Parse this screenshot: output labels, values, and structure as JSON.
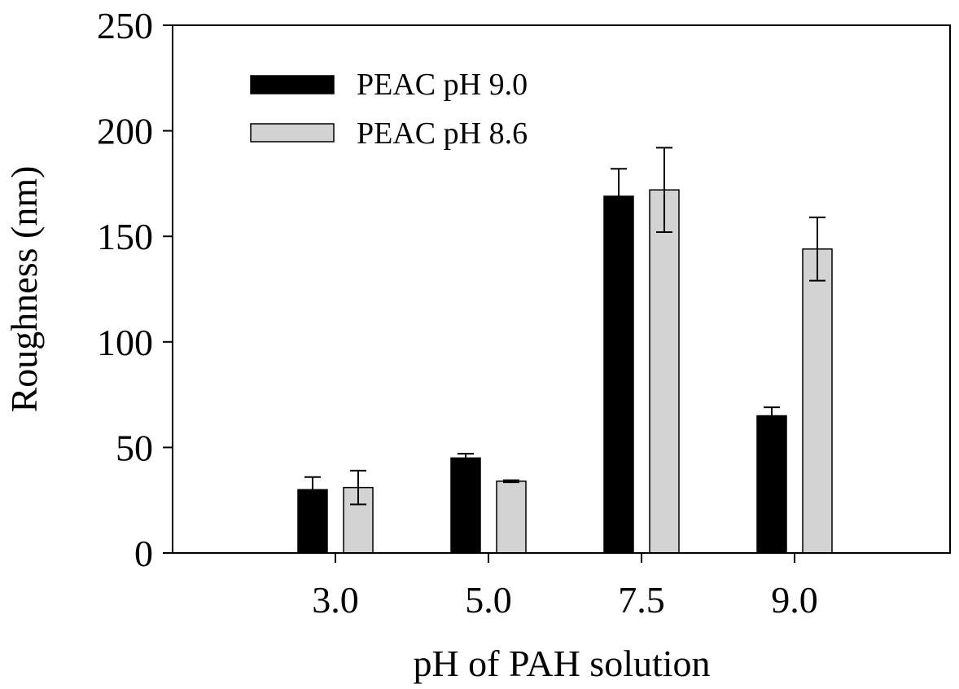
{
  "chart_data": {
    "type": "bar",
    "title": "",
    "xlabel": "pH of PAH solution",
    "ylabel": "Roughness (nm)",
    "categories": [
      "3.0",
      "5.0",
      "7.5",
      "9.0"
    ],
    "ylim": [
      0,
      250
    ],
    "yticks": [
      "0",
      "50",
      "100",
      "150",
      "200",
      "250"
    ],
    "grid": false,
    "legend_position": "top-left",
    "series": [
      {
        "name": "PEAC pH 9.0",
        "color": "#000000",
        "values": [
          30,
          45,
          169,
          65
        ],
        "errors": [
          6,
          2,
          13,
          4
        ]
      },
      {
        "name": "PEAC pH 8.6",
        "color": "#d3d3d3",
        "values": [
          31,
          34,
          172,
          144
        ],
        "errors": [
          8,
          0.5,
          20,
          15
        ]
      }
    ]
  }
}
